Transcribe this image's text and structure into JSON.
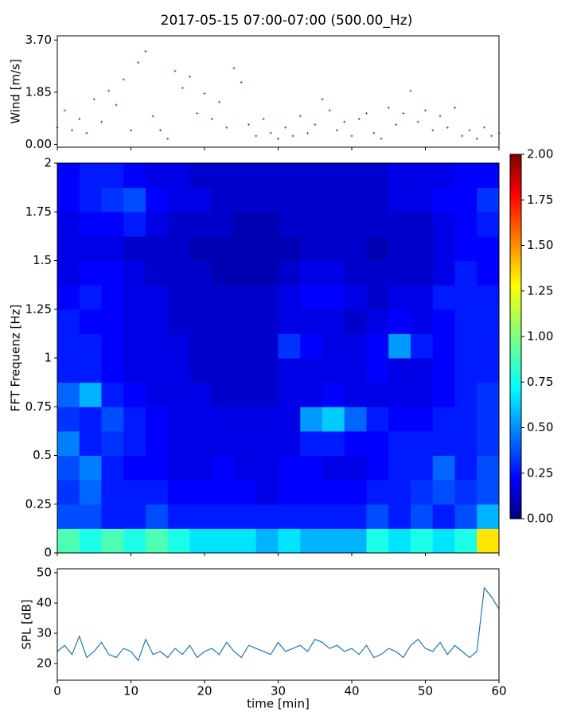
{
  "chart_data": [
    {
      "type": "scatter",
      "title": "2017-05-15 07:00-07:00 (500.00_Hz)",
      "ylabel": "Wind [m/s]",
      "color": "#1f77b4",
      "x": [
        0,
        1,
        2,
        3,
        4,
        5,
        6,
        7,
        8,
        9,
        10,
        11,
        12,
        13,
        14,
        15,
        16,
        17,
        18,
        19,
        20,
        21,
        22,
        23,
        24,
        25,
        26,
        27,
        28,
        29,
        30,
        31,
        32,
        33,
        34,
        35,
        36,
        37,
        38,
        39,
        40,
        41,
        42,
        43,
        44,
        45,
        46,
        47,
        48,
        49,
        50,
        51,
        52,
        53,
        54,
        55,
        56,
        57,
        58,
        59,
        60
      ],
      "values": [
        0.6,
        1.2,
        0.5,
        0.9,
        0.4,
        1.6,
        0.8,
        1.9,
        1.4,
        2.3,
        0.5,
        2.9,
        3.3,
        1.0,
        0.5,
        0.2,
        2.6,
        2.0,
        2.4,
        1.1,
        1.8,
        0.9,
        1.5,
        0.6,
        2.7,
        2.2,
        0.7,
        0.3,
        0.9,
        0.4,
        0.2,
        0.6,
        0.3,
        1.0,
        0.4,
        0.7,
        1.6,
        1.2,
        0.5,
        0.8,
        0.3,
        0.9,
        1.1,
        0.4,
        0.2,
        1.3,
        0.7,
        1.1,
        1.9,
        0.8,
        1.2,
        0.5,
        1.0,
        0.6,
        1.3,
        0.3,
        0.5,
        0.2,
        0.6,
        0.3,
        0.4
      ],
      "xlim": [
        0,
        60
      ],
      "ylim": [
        -0.1,
        3.85
      ],
      "yticks": [
        {
          "value": 0,
          "label": "0.00"
        },
        1.85,
        {
          "value": 3.7,
          "label": "3.70"
        }
      ]
    },
    {
      "type": "spectrogram",
      "ylabel": "FFT Frequenz [Hz]",
      "colormap": "jet",
      "clim": [
        0,
        2
      ],
      "colorbar_ticks": [
        {
          "value": 0,
          "label": "0.00"
        },
        0.25,
        {
          "value": 0.5,
          "label": "0.50"
        },
        0.75,
        {
          "value": 1,
          "label": "1.00"
        },
        1.25,
        {
          "value": 1.5,
          "label": "1.50"
        },
        1.75,
        {
          "value": 2,
          "label": "2.00"
        }
      ],
      "xlim": [
        0,
        60
      ],
      "ylim": [
        0,
        2
      ],
      "yticks": [
        0,
        0.25,
        0.5,
        0.75,
        1,
        1.25,
        1.5,
        1.75,
        2
      ],
      "z": [
        [
          0.9,
          0.8,
          0.9,
          0.8,
          0.9,
          0.8,
          0.7,
          0.7,
          0.7,
          0.6,
          0.7,
          0.6,
          0.6,
          0.6,
          0.8,
          0.7,
          0.8,
          0.7,
          0.8,
          1.3
        ],
        [
          0.4,
          0.4,
          0.3,
          0.3,
          0.4,
          0.3,
          0.3,
          0.3,
          0.3,
          0.3,
          0.3,
          0.3,
          0.3,
          0.3,
          0.4,
          0.3,
          0.4,
          0.3,
          0.4,
          0.6
        ],
        [
          0.35,
          0.45,
          0.3,
          0.3,
          0.3,
          0.25,
          0.25,
          0.25,
          0.25,
          0.2,
          0.25,
          0.25,
          0.25,
          0.25,
          0.3,
          0.3,
          0.35,
          0.4,
          0.35,
          0.4
        ],
        [
          0.4,
          0.5,
          0.3,
          0.25,
          0.25,
          0.2,
          0.2,
          0.25,
          0.2,
          0.2,
          0.25,
          0.25,
          0.2,
          0.2,
          0.25,
          0.3,
          0.3,
          0.45,
          0.3,
          0.4
        ],
        [
          0.5,
          0.3,
          0.35,
          0.3,
          0.25,
          0.2,
          0.2,
          0.2,
          0.2,
          0.2,
          0.2,
          0.3,
          0.3,
          0.25,
          0.25,
          0.3,
          0.3,
          0.3,
          0.3,
          0.35
        ],
        [
          0.35,
          0.3,
          0.4,
          0.3,
          0.25,
          0.2,
          0.2,
          0.2,
          0.2,
          0.2,
          0.2,
          0.55,
          0.65,
          0.45,
          0.3,
          0.25,
          0.25,
          0.3,
          0.3,
          0.35
        ],
        [
          0.45,
          0.6,
          0.3,
          0.25,
          0.2,
          0.2,
          0.2,
          0.15,
          0.15,
          0.15,
          0.2,
          0.2,
          0.25,
          0.2,
          0.2,
          0.2,
          0.2,
          0.25,
          0.3,
          0.35
        ],
        [
          0.3,
          0.3,
          0.25,
          0.2,
          0.2,
          0.2,
          0.15,
          0.15,
          0.15,
          0.15,
          0.2,
          0.2,
          0.2,
          0.2,
          0.25,
          0.2,
          0.2,
          0.25,
          0.3,
          0.3
        ],
        [
          0.3,
          0.3,
          0.25,
          0.2,
          0.2,
          0.2,
          0.15,
          0.15,
          0.15,
          0.15,
          0.35,
          0.25,
          0.2,
          0.2,
          0.25,
          0.55,
          0.3,
          0.25,
          0.3,
          0.3
        ],
        [
          0.3,
          0.25,
          0.25,
          0.2,
          0.2,
          0.15,
          0.15,
          0.15,
          0.15,
          0.15,
          0.2,
          0.2,
          0.2,
          0.15,
          0.2,
          0.25,
          0.2,
          0.25,
          0.3,
          0.3
        ],
        [
          0.25,
          0.3,
          0.25,
          0.2,
          0.2,
          0.15,
          0.15,
          0.15,
          0.15,
          0.15,
          0.2,
          0.25,
          0.25,
          0.2,
          0.15,
          0.2,
          0.2,
          0.3,
          0.3,
          0.3
        ],
        [
          0.2,
          0.25,
          0.25,
          0.2,
          0.15,
          0.15,
          0.15,
          0.1,
          0.1,
          0.1,
          0.15,
          0.2,
          0.2,
          0.15,
          0.15,
          0.15,
          0.15,
          0.2,
          0.3,
          0.25
        ],
        [
          0.2,
          0.2,
          0.2,
          0.15,
          0.15,
          0.15,
          0.1,
          0.1,
          0.1,
          0.1,
          0.1,
          0.15,
          0.15,
          0.15,
          0.1,
          0.15,
          0.15,
          0.2,
          0.25,
          0.25
        ],
        [
          0.2,
          0.25,
          0.25,
          0.3,
          0.2,
          0.15,
          0.15,
          0.15,
          0.1,
          0.1,
          0.15,
          0.15,
          0.15,
          0.15,
          0.15,
          0.15,
          0.15,
          0.2,
          0.25,
          0.3
        ],
        [
          0.25,
          0.3,
          0.35,
          0.4,
          0.25,
          0.2,
          0.2,
          0.15,
          0.15,
          0.15,
          0.15,
          0.15,
          0.15,
          0.15,
          0.15,
          0.2,
          0.2,
          0.25,
          0.25,
          0.35
        ],
        [
          0.25,
          0.3,
          0.3,
          0.25,
          0.2,
          0.2,
          0.15,
          0.15,
          0.15,
          0.15,
          0.15,
          0.15,
          0.15,
          0.15,
          0.15,
          0.2,
          0.2,
          0.2,
          0.25,
          0.25
        ]
      ]
    },
    {
      "type": "line",
      "ylabel": "SPL [dB]",
      "xlabel": "time [min]",
      "color": "#1f77b4",
      "x": [
        0,
        1,
        2,
        3,
        4,
        5,
        6,
        7,
        8,
        9,
        10,
        11,
        12,
        13,
        14,
        15,
        16,
        17,
        18,
        19,
        20,
        21,
        22,
        23,
        24,
        25,
        26,
        27,
        28,
        29,
        30,
        31,
        32,
        33,
        34,
        35,
        36,
        37,
        38,
        39,
        40,
        41,
        42,
        43,
        44,
        45,
        46,
        47,
        48,
        49,
        50,
        51,
        52,
        53,
        54,
        55,
        56,
        57,
        58,
        59,
        60
      ],
      "values": [
        24,
        26,
        23,
        29,
        22,
        24,
        27,
        23,
        22,
        25,
        24,
        21,
        28,
        23,
        24,
        22,
        25,
        23,
        26,
        22,
        24,
        25,
        23,
        27,
        24,
        22,
        26,
        25,
        24,
        23,
        27,
        24,
        25,
        26,
        24,
        28,
        27,
        25,
        26,
        24,
        25,
        23,
        26,
        22,
        23,
        25,
        24,
        22,
        26,
        28,
        25,
        24,
        27,
        23,
        26,
        24,
        22,
        24,
        45,
        42,
        38
      ],
      "xlim": [
        0,
        60
      ],
      "ylim": [
        14.5,
        51.3
      ],
      "xticks": [
        0,
        10,
        20,
        30,
        40,
        50,
        60
      ],
      "yticks": [
        20,
        30,
        40,
        50
      ]
    }
  ]
}
